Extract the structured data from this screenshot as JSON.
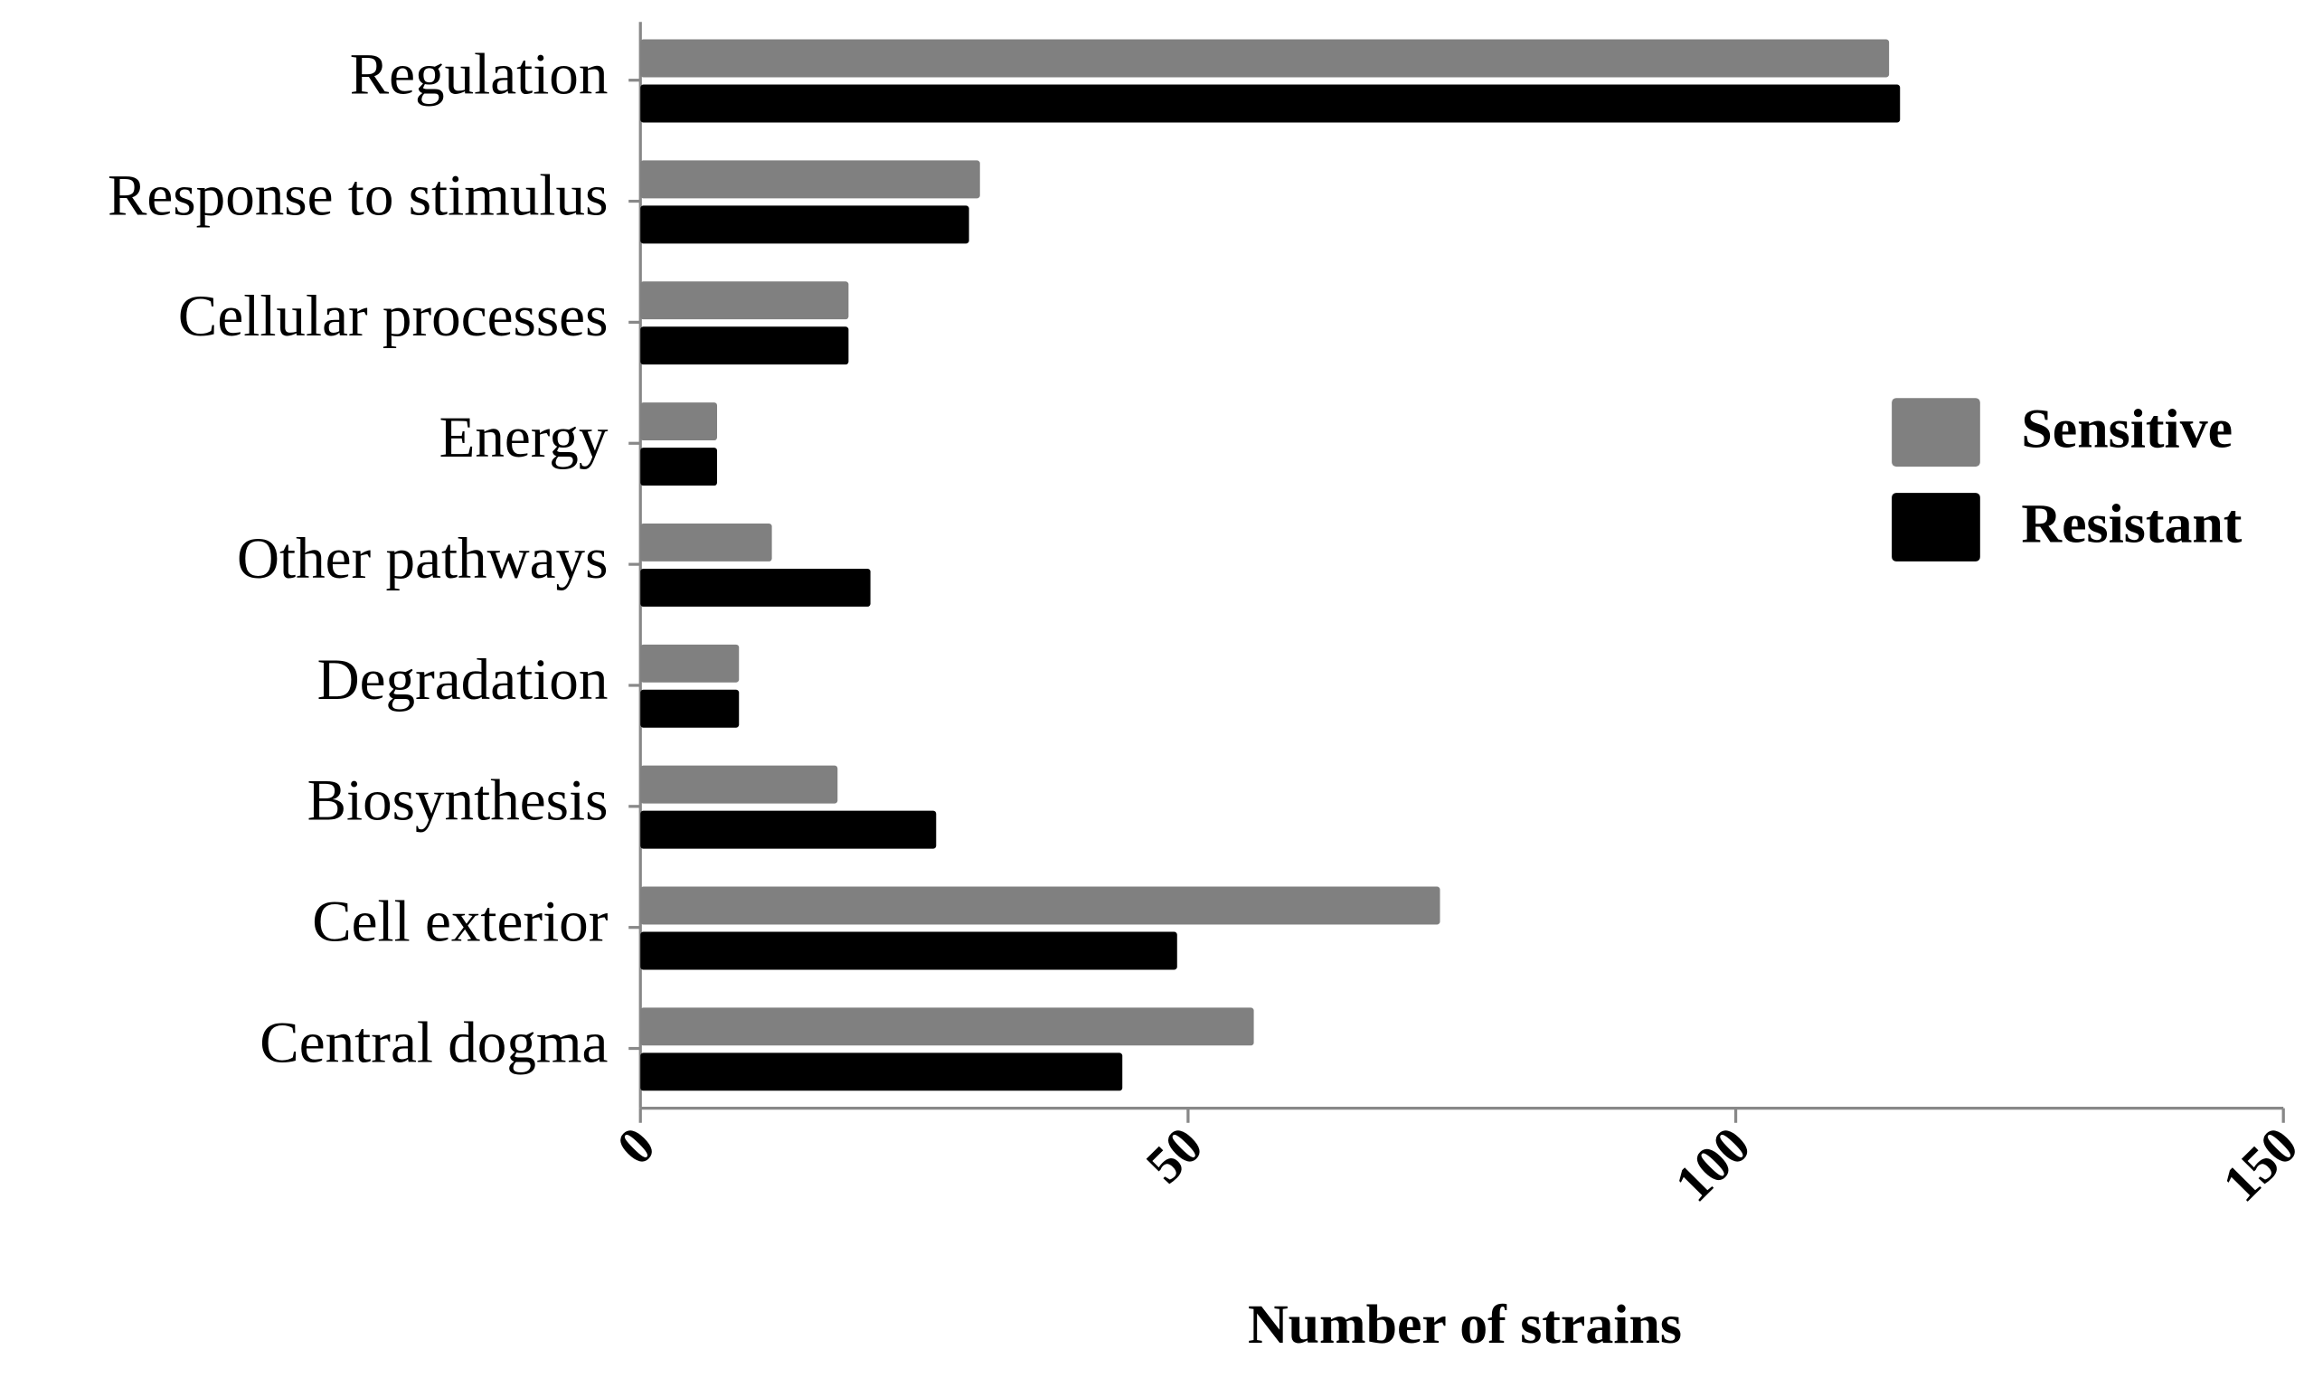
{
  "chart_data": {
    "type": "bar",
    "orientation": "horizontal",
    "x_label": "Number of strains",
    "categories": [
      "Regulation",
      "Response to stimulus",
      "Cellular processes",
      "Energy",
      "Other pathways",
      "Degradation",
      "Biosynthesis",
      "Cell exterior",
      "Central dogma"
    ],
    "series": [
      {
        "name": "Sensitive",
        "color": "#808080",
        "values": [
          114,
          31,
          19,
          7,
          12,
          9,
          18,
          73,
          56
        ]
      },
      {
        "name": "Resistant",
        "color": "#000000",
        "values": [
          115,
          30,
          19,
          7,
          21,
          9,
          27,
          49,
          44
        ]
      }
    ],
    "xlim": [
      0,
      150
    ],
    "xticks": [
      0,
      50,
      100,
      150
    ],
    "legend": "right"
  }
}
